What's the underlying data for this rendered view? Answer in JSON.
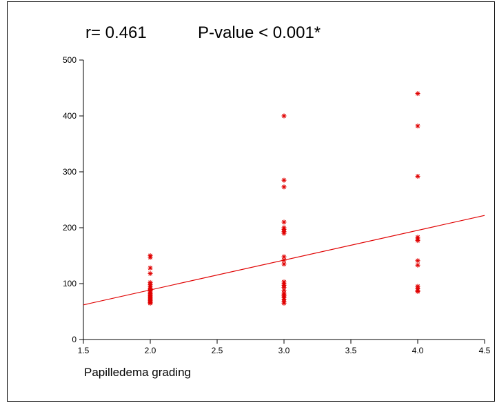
{
  "stats": {
    "r_text": "r= 0.461",
    "p_text": "P-value < 0.001*"
  },
  "chart_data": {
    "type": "scatter",
    "title": "",
    "xlabel": "Papilledema grading",
    "ylabel": "",
    "xlim": [
      1.5,
      4.5
    ],
    "ylim": [
      0,
      500
    ],
    "xticks": [
      "1.5",
      "2.0",
      "2.5",
      "3.0",
      "3.5",
      "4.0",
      "4.5"
    ],
    "yticks": [
      "0",
      "100",
      "200",
      "300",
      "400",
      "500"
    ],
    "grid": false,
    "marker": "asterisk",
    "color": "#e00000",
    "series": [
      {
        "x": [
          2,
          2,
          2,
          2,
          2,
          2,
          2,
          2,
          2,
          2,
          2,
          2,
          2,
          2,
          2,
          2,
          2,
          2,
          2,
          2,
          2,
          2,
          3,
          3,
          3,
          3,
          3,
          3,
          3,
          3,
          3,
          3,
          3,
          3,
          3,
          3,
          3,
          3,
          3,
          3,
          3,
          3,
          3,
          3,
          3,
          4,
          4,
          4,
          4,
          4,
          4,
          4,
          4,
          4,
          4,
          4,
          4
        ],
        "y": [
          150,
          147,
          128,
          118,
          102,
          98,
          95,
          90,
          87,
          85,
          82,
          80,
          78,
          76,
          74,
          72,
          70,
          68,
          66,
          65,
          88,
          92,
          400,
          285,
          273,
          210,
          200,
          197,
          193,
          190,
          148,
          142,
          135,
          103,
          100,
          97,
          88,
          83,
          78,
          75,
          72,
          68,
          65,
          93,
          80,
          440,
          382,
          292,
          183,
          180,
          177,
          141,
          133,
          95,
          91,
          88,
          86
        ]
      }
    ],
    "trendline": {
      "x": [
        1.5,
        4.5
      ],
      "y": [
        62,
        222
      ]
    }
  }
}
